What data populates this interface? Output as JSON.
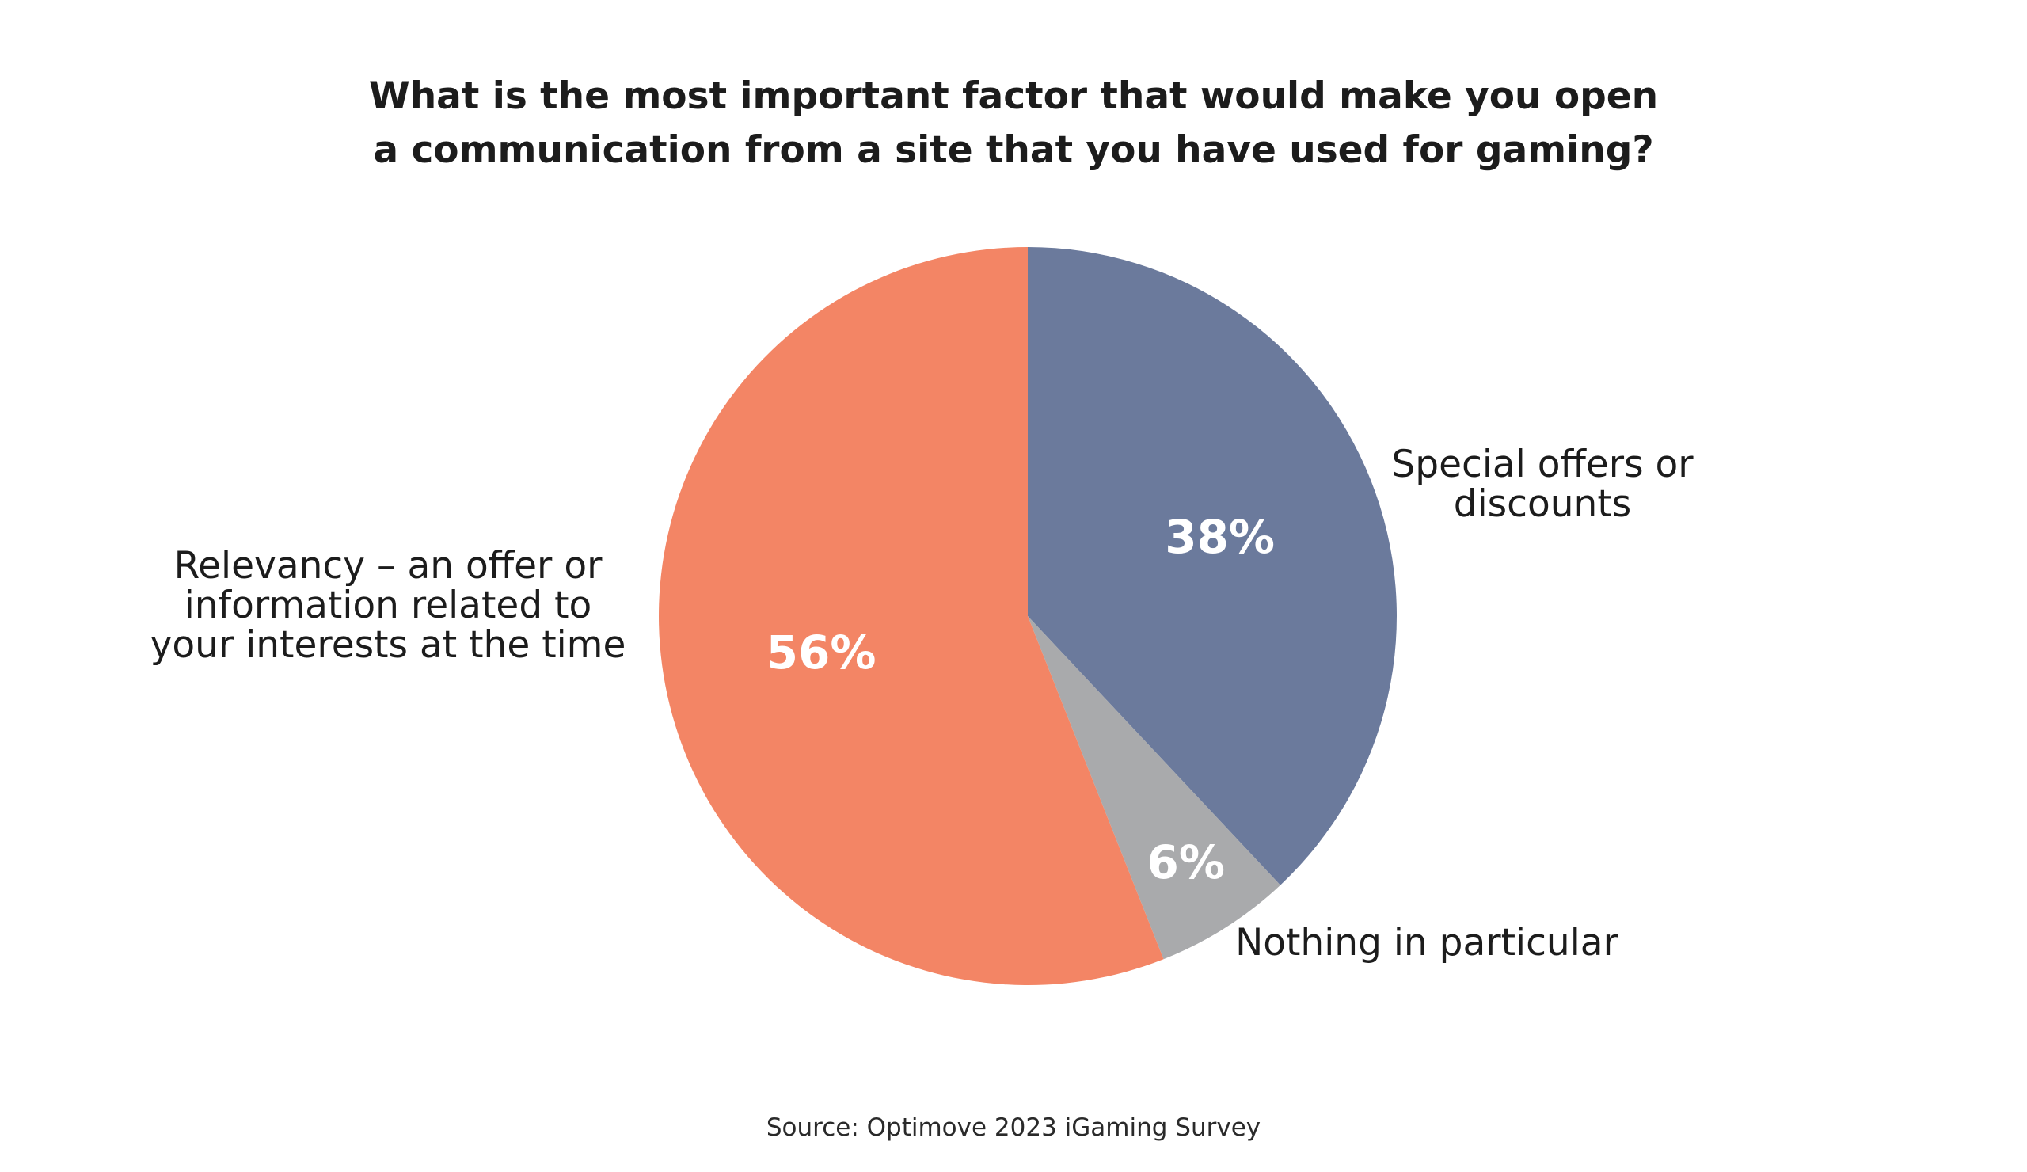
{
  "chart_data": {
    "type": "pie",
    "title_lines": [
      "What is the most important factor that would make you open",
      "a communication from a site that you have used for gaming?"
    ],
    "slices": [
      {
        "label_lines": [
          "Special offers or",
          "discounts"
        ],
        "value": 38,
        "value_label": "38%",
        "color": "#6b7a9c"
      },
      {
        "label_lines": [
          "Nothing in particular"
        ],
        "value": 6,
        "value_label": "6%",
        "color": "#a9aaac"
      },
      {
        "label_lines": [
          "Relevancy – an offer or",
          "information related to",
          "your interests at the time"
        ],
        "value": 56,
        "value_label": "56%",
        "color": "#f38565"
      }
    ],
    "start_angle": "12 o'clock",
    "direction": "clockwise",
    "legend": "none",
    "source": "Source: Optimove 2023 iGaming Survey"
  }
}
